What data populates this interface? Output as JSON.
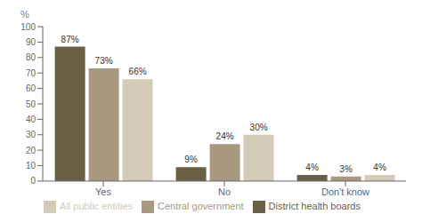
{
  "chart_data": {
    "type": "bar",
    "ylabel": "%",
    "categories": [
      "Yes",
      "No",
      "Don't know"
    ],
    "series": [
      {
        "name": "District health boards",
        "color": "#6b6045",
        "values": [
          87,
          9,
          4
        ],
        "value_labels": [
          "87%",
          "9%",
          "4%"
        ]
      },
      {
        "name": "Central government",
        "color": "#a89880",
        "values": [
          73,
          24,
          3
        ],
        "value_labels": [
          "73%",
          "24%",
          "3%"
        ]
      },
      {
        "name": "All public entities",
        "color": "#d4ccb8",
        "values": [
          66,
          30,
          4
        ],
        "value_labels": [
          "66%",
          "30%",
          "4%"
        ]
      }
    ],
    "ylim": [
      0,
      100
    ],
    "yticks": [
      0,
      10,
      20,
      30,
      40,
      50,
      60,
      70,
      80,
      90,
      100
    ],
    "grid": false,
    "legend": "bottom",
    "data_labels": true
  }
}
